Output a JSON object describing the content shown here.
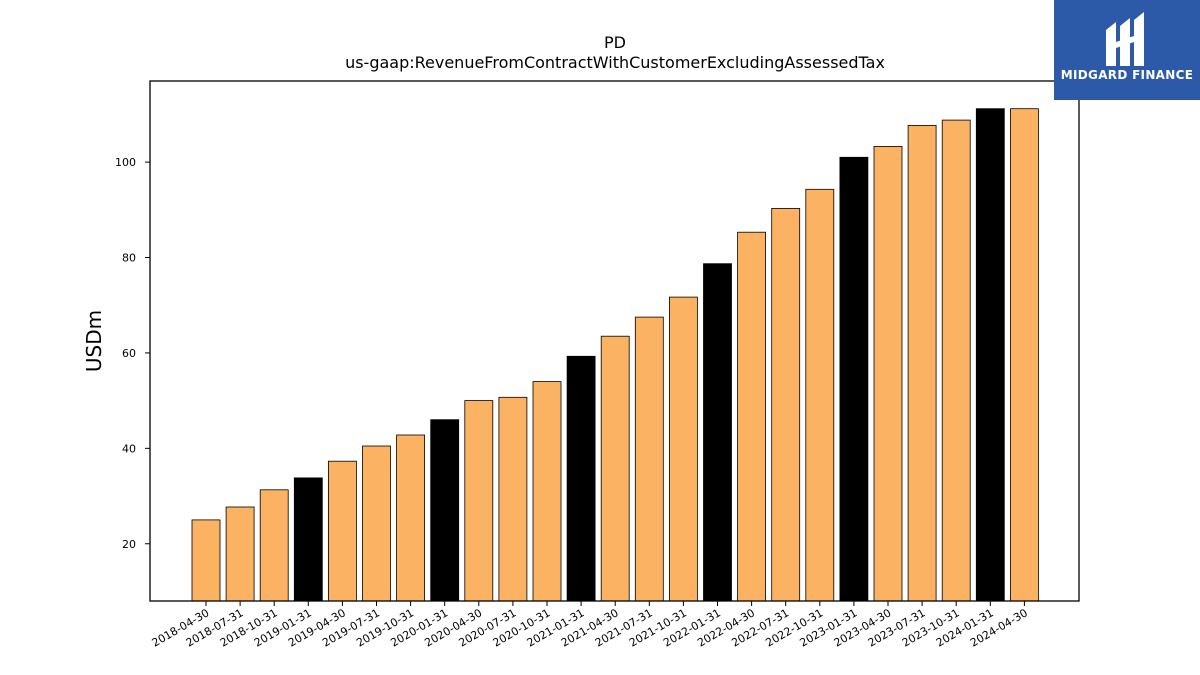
{
  "logo": {
    "text": "MIDGARD FINANCE"
  },
  "chart_data": {
    "type": "bar",
    "title_lines": [
      "PD",
      "us-gaap:RevenueFromContractWithCustomerExcludingAssessedTax"
    ],
    "xlabel": "",
    "ylabel": "USDm",
    "ylim": [
      8,
      117
    ],
    "yticks": [
      20,
      40,
      60,
      80,
      100
    ],
    "grid": false,
    "colors": {
      "quarter": "#fbb262",
      "fiscal_q4": "#000000",
      "edge": "#000000"
    },
    "categories": [
      "2018-04-30",
      "2018-07-31",
      "2018-10-31",
      "2019-01-31",
      "2019-04-30",
      "2019-07-31",
      "2019-10-31",
      "2020-01-31",
      "2020-04-30",
      "2020-07-31",
      "2020-10-31",
      "2021-01-31",
      "2021-04-30",
      "2021-07-31",
      "2021-10-31",
      "2022-01-31",
      "2022-04-30",
      "2022-07-31",
      "2022-10-31",
      "2023-01-31",
      "2023-04-30",
      "2023-07-31",
      "2023-10-31",
      "2024-01-31",
      "2024-04-30"
    ],
    "values": [
      25.0,
      27.7,
      31.3,
      33.8,
      37.3,
      40.5,
      42.8,
      46.0,
      50.0,
      50.7,
      54.0,
      59.3,
      63.5,
      67.5,
      71.7,
      78.7,
      85.3,
      90.3,
      94.3,
      101.0,
      103.3,
      107.7,
      108.8,
      111.2,
      111.2
    ],
    "highlight": [
      false,
      false,
      false,
      true,
      false,
      false,
      false,
      true,
      false,
      false,
      false,
      true,
      false,
      false,
      false,
      true,
      false,
      false,
      false,
      true,
      false,
      false,
      false,
      true,
      false
    ]
  }
}
